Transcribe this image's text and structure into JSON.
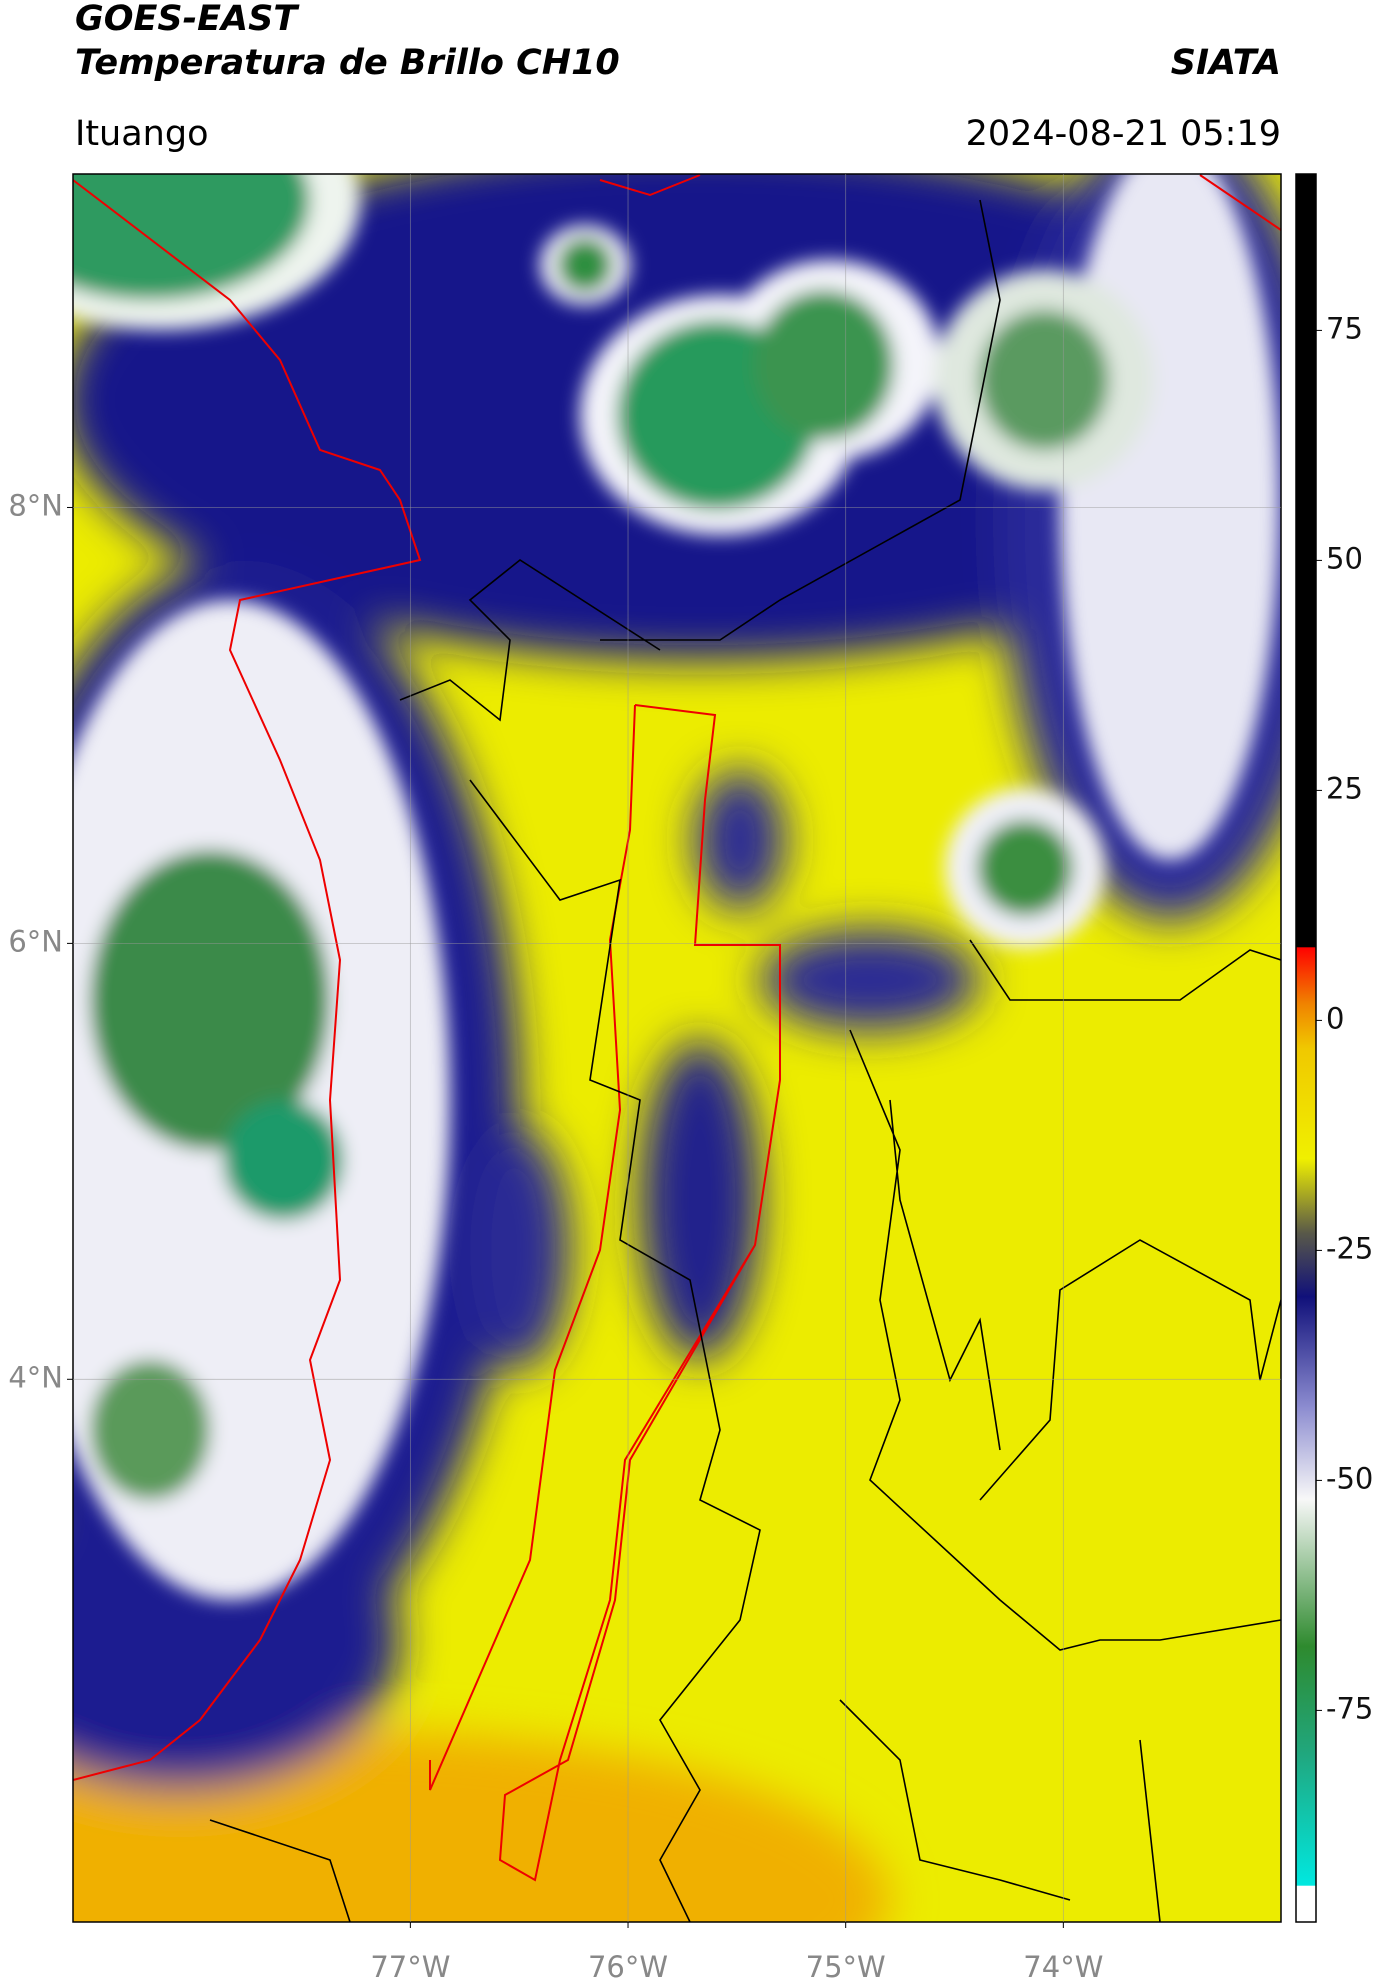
{
  "header": {
    "title": "GOES-EAST",
    "subtitle": "Temperatura de Brillo CH10",
    "source": "SIATA",
    "location": "Ituango",
    "datetime": "2024-08-21 05:19"
  },
  "map": {
    "xlim": [
      -78.55,
      -73.0
    ],
    "ylim": [
      1.51,
      9.53
    ],
    "xticks": [
      {
        "value": -77,
        "label": "77°W"
      },
      {
        "value": -76,
        "label": "76°W"
      },
      {
        "value": -75,
        "label": "75°W"
      },
      {
        "value": -74,
        "label": "74°W"
      }
    ],
    "yticks": [
      {
        "value": 4,
        "label": "4°N"
      },
      {
        "value": 6,
        "label": "6°N"
      },
      {
        "value": 8,
        "label": "8°N"
      }
    ],
    "grid": true
  },
  "colorbar": {
    "lim": [
      -98,
      92
    ],
    "ticks": [
      -75,
      -50,
      -25,
      0,
      25,
      50,
      75
    ],
    "stops": [
      {
        "value": -98,
        "color": "#ffffff"
      },
      {
        "value": -94,
        "color": "#ffffff"
      },
      {
        "value": -94,
        "color": "#00e8e0"
      },
      {
        "value": -80,
        "color": "#20a880"
      },
      {
        "value": -68,
        "color": "#2e8a2e"
      },
      {
        "value": -52,
        "color": "#f8f8f8"
      },
      {
        "value": -42,
        "color": "#8c8cd0"
      },
      {
        "value": -30,
        "color": "#10107a"
      },
      {
        "value": -23,
        "color": "#5a5a48"
      },
      {
        "value": -15,
        "color": "#f0f000"
      },
      {
        "value": -3,
        "color": "#f0c800"
      },
      {
        "value": 2,
        "color": "#f08000"
      },
      {
        "value": 8,
        "color": "#ff0000"
      },
      {
        "value": 8,
        "color": "#000000"
      },
      {
        "value": 92,
        "color": "#000000"
      }
    ]
  }
}
